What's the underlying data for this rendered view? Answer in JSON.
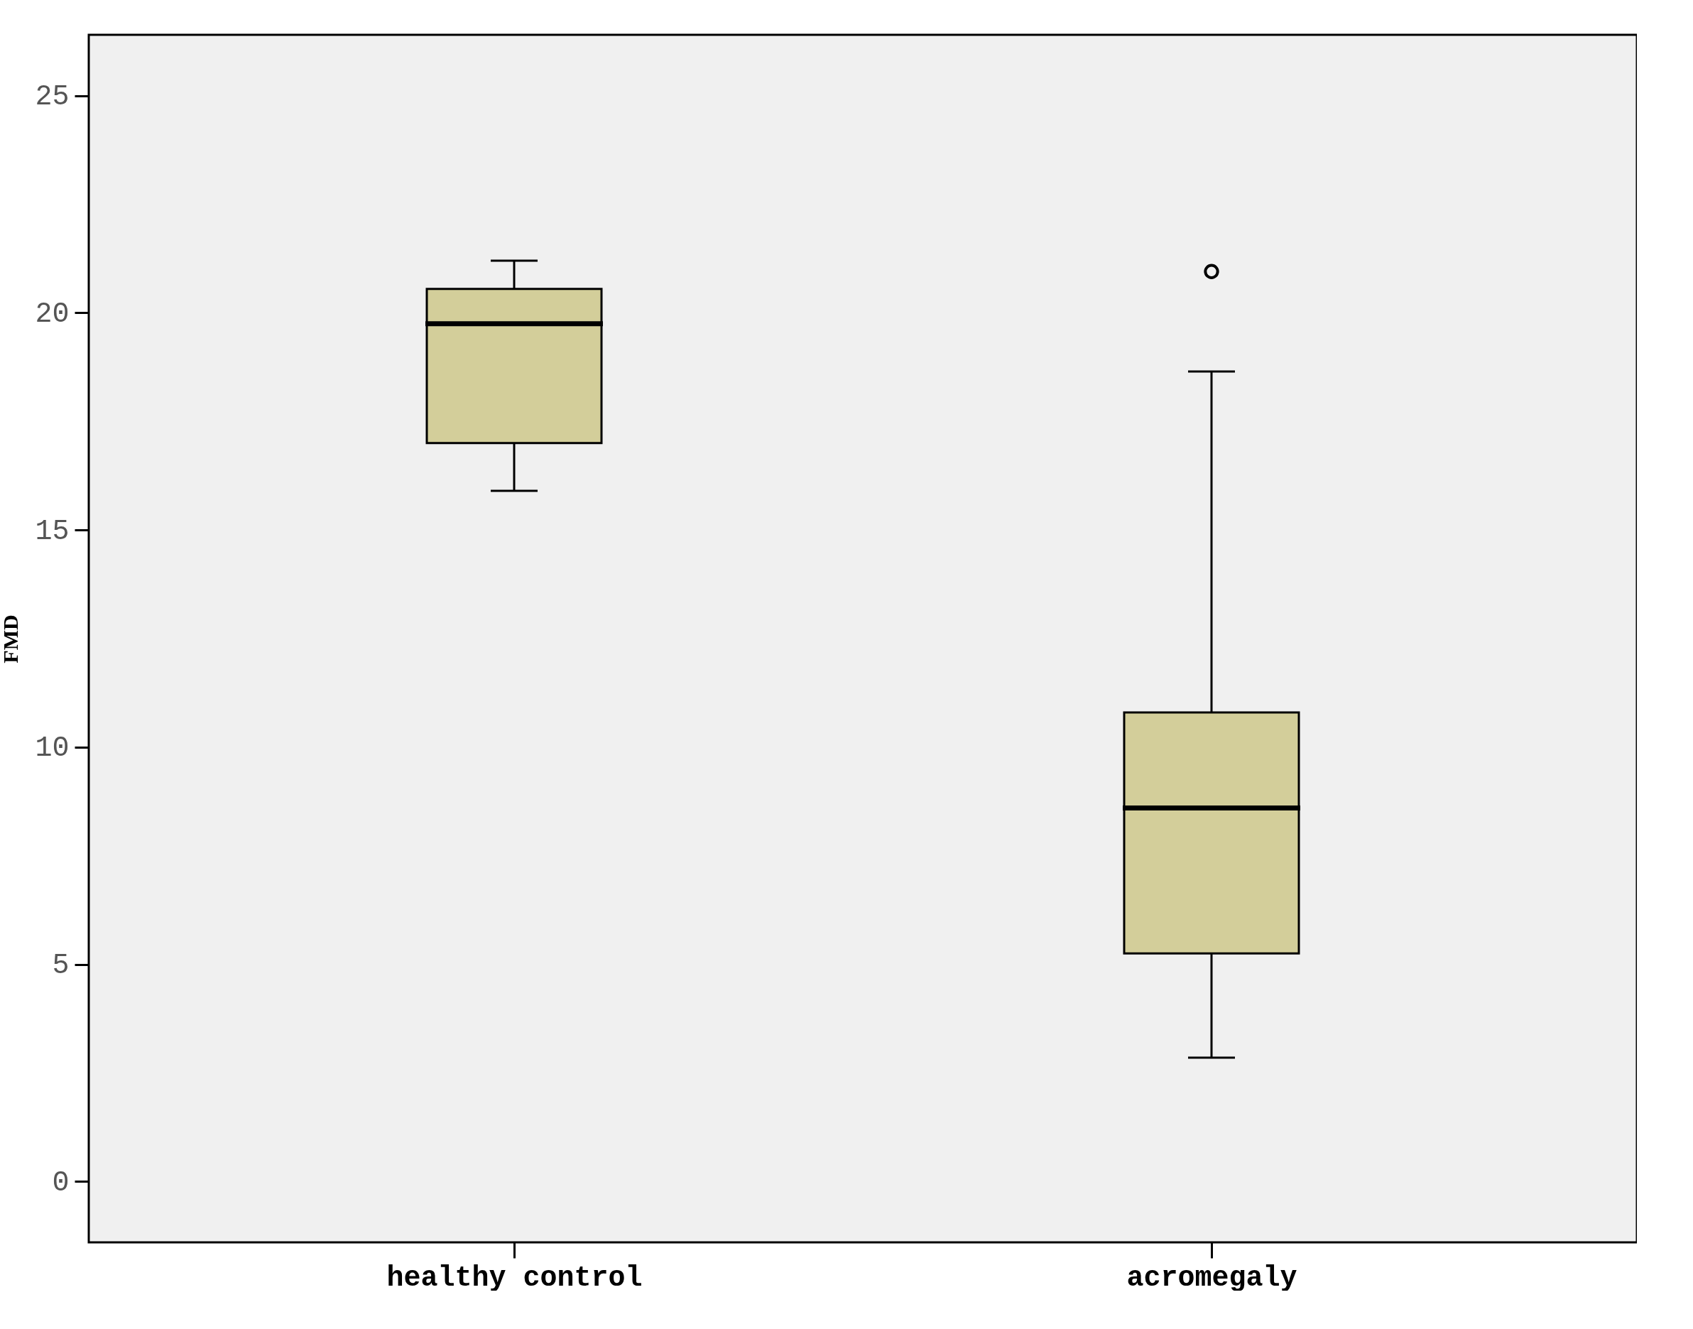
{
  "chart_data": {
    "type": "box",
    "ylabel": "FMD",
    "categories": [
      "healthy control",
      "acromegaly"
    ],
    "color": "#d3ce9a",
    "boxes": [
      {
        "low": 15.9,
        "q1": 17.0,
        "median": 19.75,
        "q3": 20.55,
        "high": 21.2
      },
      {
        "low": 2.85,
        "q1": 5.25,
        "median": 8.6,
        "q3": 10.8,
        "high": 18.65,
        "outliers": [
          20.95
        ]
      }
    ],
    "ylim": [
      -1.4,
      26.4
    ],
    "yticks": [
      0,
      5,
      10,
      15,
      20,
      25
    ]
  }
}
